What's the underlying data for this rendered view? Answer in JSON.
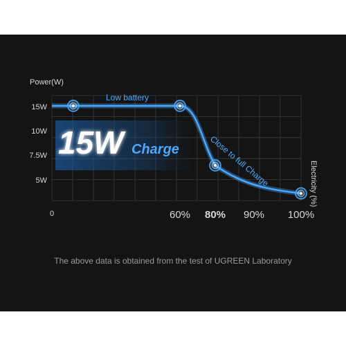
{
  "chart_data": {
    "type": "line",
    "ylabel": "Power(W)",
    "xlabel": "Electricity (%)",
    "y_ticks": [
      "15W",
      "10W",
      "7.5W",
      "5W"
    ],
    "x_ticks": [
      "0",
      "60%",
      "80%",
      "90%",
      "100%"
    ],
    "emphasized_x_tick": "80%",
    "x": [
      0,
      60,
      80,
      100
    ],
    "series": [
      {
        "values": [
          15,
          15,
          6.5,
          3.5
        ]
      }
    ],
    "marked_x": [
      10,
      60,
      80,
      100
    ],
    "annotations": {
      "segment_1": "Low battery",
      "segment_2": "Close to full Charge"
    },
    "badge": {
      "big": "15W",
      "small": "Charge"
    },
    "colors": {
      "line": "#49a8ff",
      "grid": "#3a3a3a",
      "background": "#141414"
    }
  },
  "footnote": "The above data is obtained from the test of UGREEN Laboratory"
}
